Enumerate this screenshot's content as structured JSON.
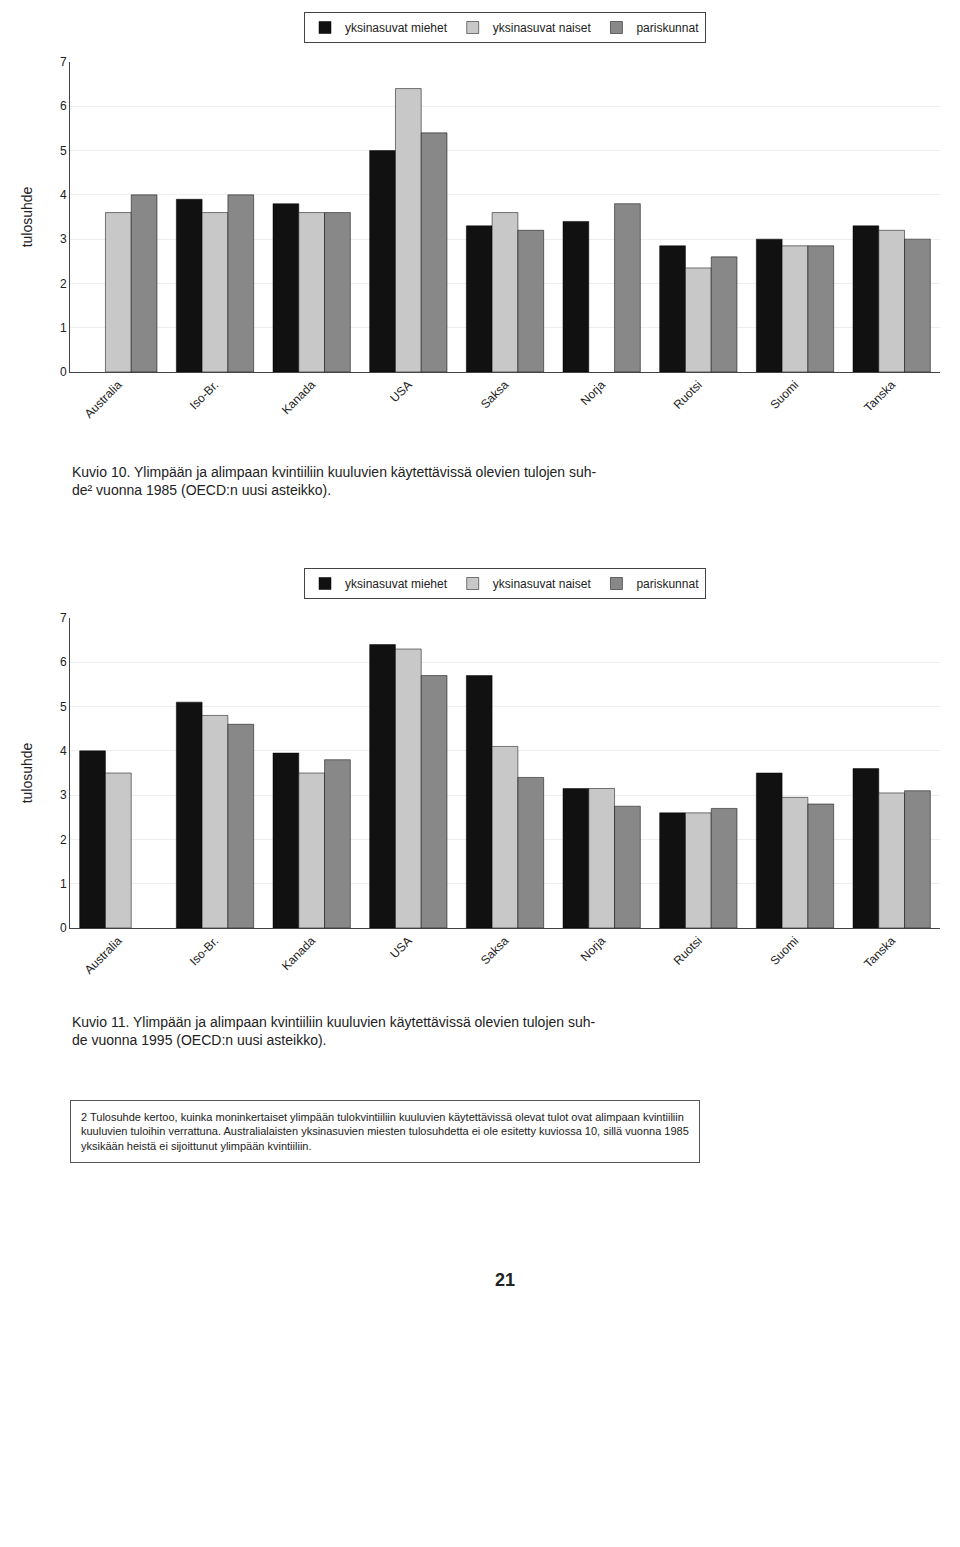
{
  "chart_data": [
    {
      "type": "bar",
      "title": "Kuvio 10. Ylimpään ja alimpaan kvintiiliin kuuluvien käytettävissä olevien tulojen suh-\nde² vuonna 1985 (OECD:n uusi asteikko).",
      "categories": [
        "Australia",
        "Iso-Br.",
        "Kanada",
        "USA",
        "Saksa",
        "Norja",
        "Ruotsi",
        "Suomi",
        "Tanska"
      ],
      "series": [
        {
          "name": "yksinasuvat miehet",
          "color": "#111111",
          "values": [
            null,
            3.9,
            3.8,
            5.0,
            3.3,
            3.4,
            2.85,
            3.0,
            3.3
          ]
        },
        {
          "name": "yksinasuvat naiset",
          "color": "#c8c8c8",
          "values": [
            3.6,
            3.6,
            3.6,
            6.4,
            3.6,
            null,
            2.35,
            2.85,
            3.2
          ]
        },
        {
          "name": "pariskunnat",
          "color": "#888888",
          "values": [
            4.0,
            4.0,
            3.6,
            5.4,
            3.2,
            3.8,
            2.6,
            2.85,
            3.0
          ]
        }
      ],
      "ylabel": "tulosuhde",
      "ylim": [
        0,
        7
      ],
      "yticks": [
        0,
        1,
        2,
        3,
        4,
        5,
        6,
        7
      ],
      "grid": true,
      "legend": "top"
    },
    {
      "type": "bar",
      "title": "Kuvio 11. Ylimpään ja alimpaan kvintiiliin kuuluvien käytettävissä olevien tulojen suh-\nde vuonna 1995 (OECD:n uusi asteikko).",
      "categories": [
        "Australia",
        "Iso-Br.",
        "Kanada",
        "USA",
        "Saksa",
        "Norja",
        "Ruotsi",
        "Suomi",
        "Tanska"
      ],
      "series": [
        {
          "name": "yksinasuvat miehet",
          "color": "#111111",
          "values": [
            4.0,
            5.1,
            3.95,
            6.4,
            5.7,
            3.15,
            2.6,
            3.5,
            3.6
          ]
        },
        {
          "name": "yksinasuvat naiset",
          "color": "#c8c8c8",
          "values": [
            3.5,
            4.8,
            3.5,
            6.3,
            4.1,
            3.15,
            2.6,
            2.95,
            3.05
          ]
        },
        {
          "name": "pariskunnat",
          "color": "#888888",
          "values": [
            null,
            4.6,
            3.8,
            5.7,
            3.4,
            2.75,
            2.7,
            2.8,
            3.1
          ]
        }
      ],
      "ylabel": "tulosuhde",
      "ylim": [
        0,
        7
      ],
      "yticks": [
        0,
        1,
        2,
        3,
        4,
        5,
        6,
        7
      ],
      "grid": true,
      "legend": "top",
      "annotations": [
        "2 Tulosuhde kertoo, kuinka moninkertaiset ylimpään tulokvintiiliin kuuluvien käytettävissä olevat tulot ovat alimpaan kvintiiliin",
        "kuuluvien tuloihin verrattuna. Australialaisten yksinasuvien miesten tulosuhdetta ei ole esitetty kuviossa 10, sillä vuonna 1985",
        "yksikään heistä ei sijoittunut ylimpään kvintiiliin.",
        "21"
      ]
    }
  ]
}
